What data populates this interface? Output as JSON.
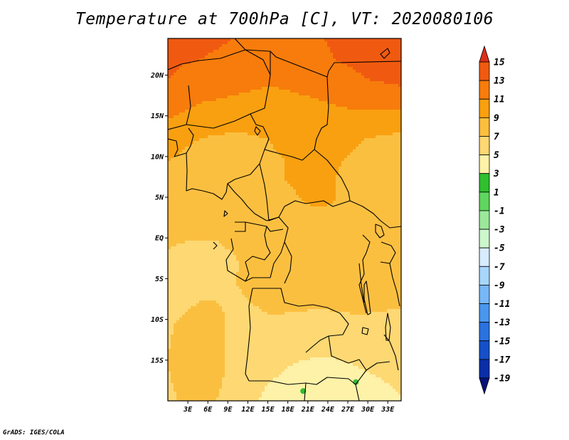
{
  "title": "Temperature at 700hPa [C], VT: 2020080106",
  "credit": "GrADS: IGES/COLA",
  "chart_data": {
    "type": "heatmap",
    "title": "Temperature at 700hPa [C], VT: 2020080106",
    "xlabel": "",
    "ylabel": "",
    "xlim": [
      0,
      35
    ],
    "ylim": [
      -20,
      24.5
    ],
    "x_ticks": [
      {
        "value": 3,
        "label": "3E"
      },
      {
        "value": 6,
        "label": "6E"
      },
      {
        "value": 9,
        "label": "9E"
      },
      {
        "value": 12,
        "label": "12E"
      },
      {
        "value": 15,
        "label": "15E"
      },
      {
        "value": 18,
        "label": "18E"
      },
      {
        "value": 21,
        "label": "21E"
      },
      {
        "value": 24,
        "label": "24E"
      },
      {
        "value": 27,
        "label": "27E"
      },
      {
        "value": 30,
        "label": "30E"
      },
      {
        "value": 33,
        "label": "33E"
      }
    ],
    "y_ticks": [
      {
        "value": 20,
        "label": "20N"
      },
      {
        "value": 15,
        "label": "15N"
      },
      {
        "value": 10,
        "label": "10N"
      },
      {
        "value": 5,
        "label": "5N"
      },
      {
        "value": 0,
        "label": "EQ"
      },
      {
        "value": -5,
        "label": "5S"
      },
      {
        "value": -10,
        "label": "10S"
      },
      {
        "value": -15,
        "label": "15S"
      }
    ],
    "colorbar": {
      "labels": [
        "15",
        "13",
        "11",
        "9",
        "7",
        "5",
        "3",
        "1",
        "-1",
        "-3",
        "-5",
        "-7",
        "-9",
        "-11",
        "-13",
        "-15",
        "-17",
        "-19"
      ],
      "colors": [
        "#db3018",
        "#f05a10",
        "#f77c0c",
        "#f9a010",
        "#fbbf40",
        "#fdd873",
        "#fef1a8",
        "#2fbf2f",
        "#5fd65f",
        "#9be89b",
        "#cdf6cd",
        "#d7ecfc",
        "#a8d6fb",
        "#77b7f6",
        "#4a96ee",
        "#2a72e0",
        "#1650c8",
        "#0a2ea8",
        "#05137a"
      ]
    },
    "field": {
      "grid_lon_start": 0,
      "grid_lon_step": 2.5,
      "grid_lon_count": 15,
      "grid_lat_start": 24.5,
      "grid_lat_step": -2.5,
      "grid_lat_count": 19,
      "values": [
        [
          13.8,
          13.5,
          13.3,
          13.2,
          13.0,
          12.8,
          12.5,
          12.3,
          12.5,
          12.8,
          13.3,
          13.6,
          14.0,
          14.3,
          14.6
        ],
        [
          13.5,
          13.2,
          13.0,
          12.8,
          12.5,
          12.2,
          12.0,
          12.0,
          12.2,
          12.5,
          13.0,
          13.3,
          13.6,
          14.0,
          14.2
        ],
        [
          13.0,
          12.5,
          12.2,
          12.0,
          11.8,
          11.5,
          11.3,
          11.4,
          11.6,
          11.8,
          12.2,
          12.6,
          13.0,
          13.2,
          13.4
        ],
        [
          12.0,
          11.6,
          11.2,
          11.0,
          10.8,
          10.6,
          10.5,
          10.6,
          10.8,
          11.0,
          11.3,
          11.6,
          11.8,
          12.0,
          12.2
        ],
        [
          11.0,
          10.5,
          10.0,
          9.8,
          9.6,
          9.5,
          9.4,
          9.6,
          9.8,
          10.0,
          10.2,
          10.3,
          10.3,
          10.2,
          10.0
        ],
        [
          9.8,
          9.3,
          8.9,
          8.7,
          8.6,
          8.8,
          9.0,
          9.2,
          9.4,
          9.5,
          9.4,
          9.2,
          8.9,
          8.6,
          8.4
        ],
        [
          9.0,
          8.6,
          8.3,
          8.2,
          8.2,
          8.5,
          8.8,
          9.0,
          9.2,
          9.2,
          9.1,
          8.9,
          8.6,
          8.3,
          8.1
        ],
        [
          8.6,
          8.3,
          8.0,
          7.9,
          8.0,
          8.3,
          8.7,
          9.0,
          9.1,
          9.1,
          9.0,
          8.8,
          8.5,
          8.3,
          8.1
        ],
        [
          8.3,
          8.0,
          7.8,
          7.6,
          7.8,
          8.1,
          8.5,
          8.8,
          9.0,
          9.1,
          9.0,
          8.8,
          8.5,
          8.3,
          8.2
        ],
        [
          8.0,
          7.8,
          7.6,
          7.5,
          7.6,
          7.8,
          8.0,
          8.3,
          8.6,
          8.8,
          8.8,
          8.7,
          8.5,
          8.3,
          8.2
        ],
        [
          7.2,
          7.0,
          6.9,
          7.0,
          7.2,
          7.5,
          7.8,
          8.1,
          8.3,
          8.5,
          8.6,
          8.5,
          8.4,
          8.3,
          8.2
        ],
        [
          6.6,
          6.4,
          6.4,
          6.6,
          6.9,
          7.3,
          7.6,
          7.8,
          8.0,
          8.2,
          8.3,
          8.3,
          8.2,
          8.0,
          7.9
        ],
        [
          6.3,
          6.3,
          6.5,
          6.8,
          7.0,
          7.2,
          7.4,
          7.5,
          7.6,
          7.7,
          7.8,
          7.9,
          7.9,
          7.8,
          7.7
        ],
        [
          6.4,
          6.6,
          7.1,
          7.0,
          6.8,
          7.0,
          7.2,
          7.2,
          7.2,
          7.2,
          7.3,
          7.4,
          7.4,
          7.3,
          7.2
        ],
        [
          6.7,
          7.4,
          7.9,
          7.3,
          6.7,
          6.6,
          6.8,
          6.8,
          6.7,
          6.5,
          6.5,
          6.6,
          6.6,
          6.5,
          6.4
        ],
        [
          6.9,
          7.7,
          8.1,
          7.4,
          6.6,
          6.3,
          6.2,
          6.1,
          5.9,
          5.8,
          5.8,
          5.9,
          6.0,
          6.0,
          6.0
        ],
        [
          7.0,
          7.8,
          8.2,
          7.5,
          6.5,
          6.0,
          5.7,
          5.2,
          4.8,
          4.6,
          4.7,
          5.0,
          5.3,
          5.5,
          5.6
        ],
        [
          6.8,
          7.5,
          7.8,
          7.2,
          6.3,
          5.6,
          5.0,
          4.5,
          4.0,
          3.6,
          3.6,
          4.0,
          4.5,
          4.9,
          5.2
        ],
        [
          6.5,
          7.2,
          7.5,
          6.9,
          6.0,
          5.2,
          4.5,
          3.8,
          3.1,
          2.9,
          2.9,
          3.1,
          3.8,
          4.5,
          4.8
        ]
      ]
    },
    "green_patches": [
      {
        "lon": 20.3,
        "lat": -18.8,
        "value": 2.0
      },
      {
        "lon": 28.2,
        "lat": -17.7,
        "value": 1.8
      }
    ],
    "grid": false,
    "legend": "right"
  }
}
